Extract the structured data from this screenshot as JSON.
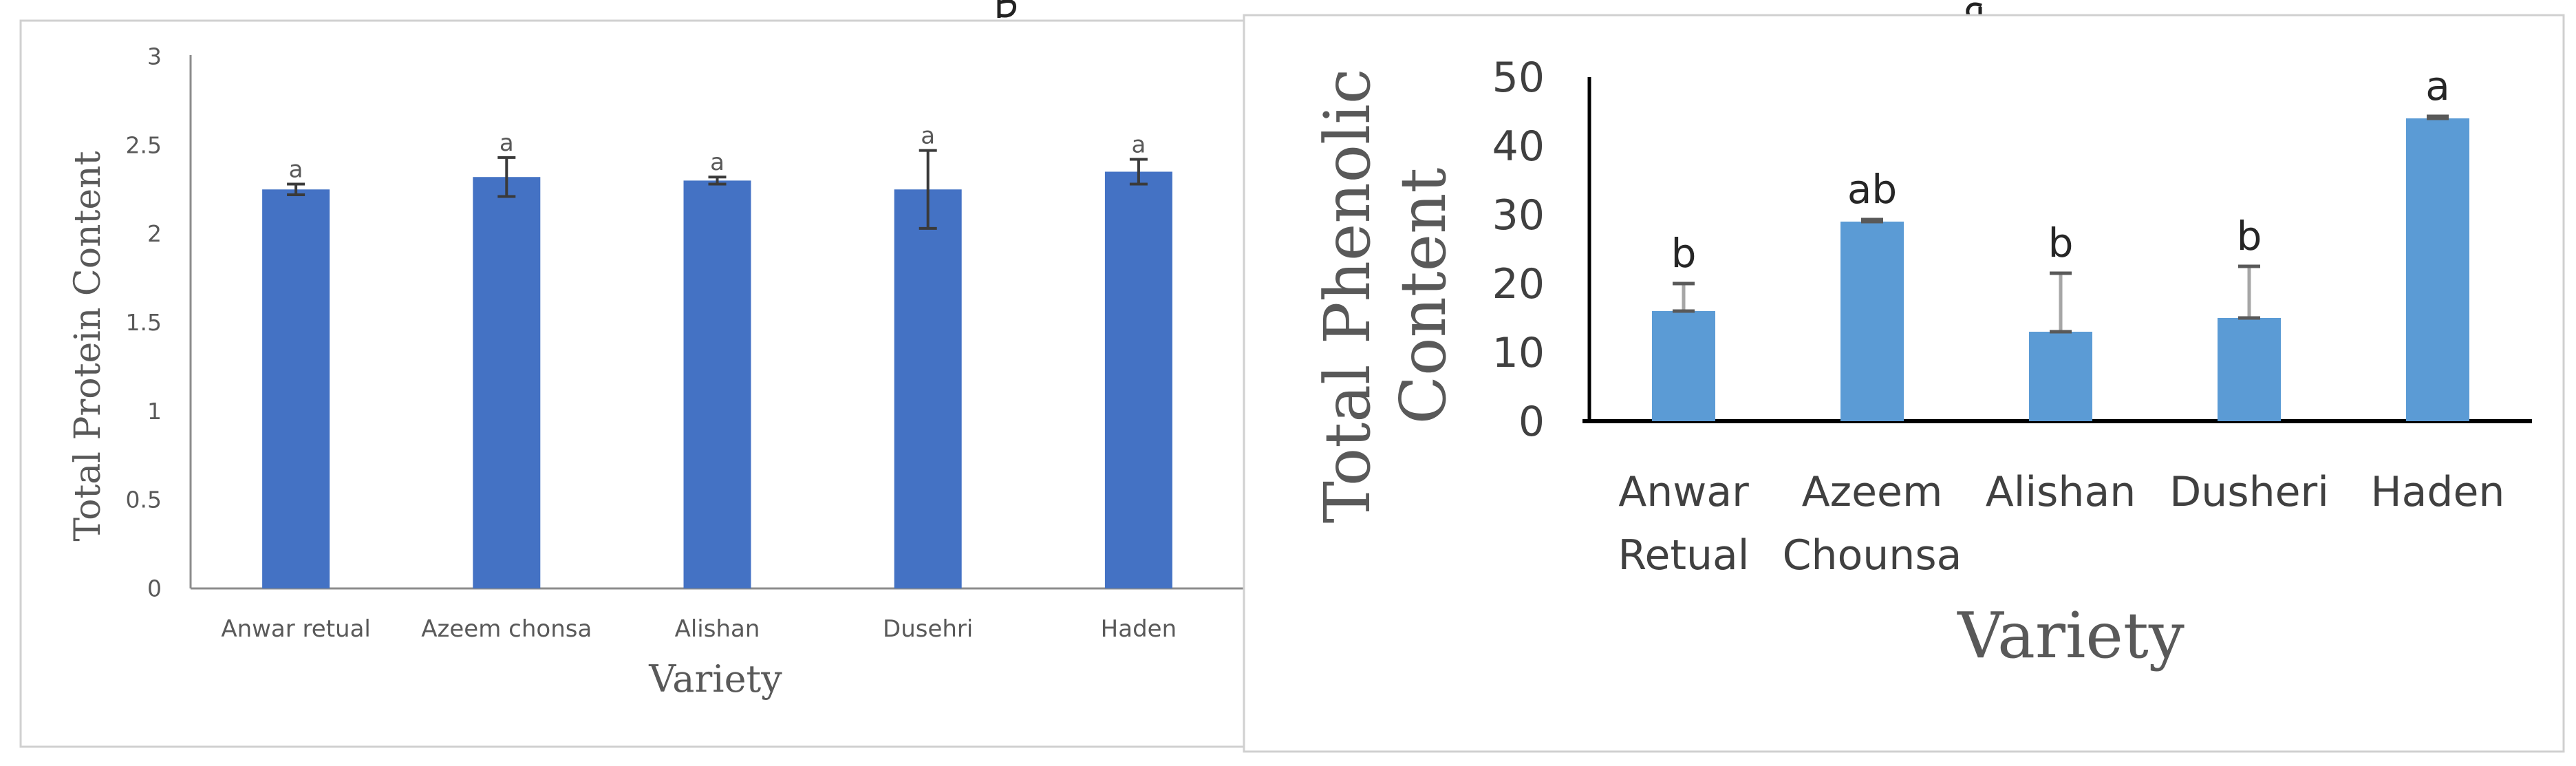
{
  "chart_data": [
    {
      "type": "bar",
      "title": "",
      "xlabel": "Variety",
      "ylabel": "Total Protein Content",
      "ylim": [
        0,
        3
      ],
      "yticks": [
        "0",
        "0.5",
        "1",
        "1.5",
        "2",
        "2.5",
        "3"
      ],
      "categories": [
        "Anwar retual",
        "Azeem chonsa",
        "Alishan",
        "Dusehri",
        "Haden"
      ],
      "values": [
        2.25,
        2.32,
        2.3,
        2.25,
        2.35
      ],
      "errors": [
        0.03,
        0.11,
        0.02,
        0.22,
        0.07
      ],
      "letters": [
        "a",
        "a",
        "a",
        "a",
        "a"
      ],
      "color": "#4472c4",
      "grid": false
    },
    {
      "type": "bar",
      "title": "",
      "xlabel": "Variety",
      "ylabel_lines": [
        "Total Phenolic",
        "Content"
      ],
      "ylim": [
        0,
        50
      ],
      "yticks": [
        "0",
        "10",
        "20",
        "30",
        "40",
        "50"
      ],
      "categories": [
        [
          "Anwar",
          "Retual"
        ],
        [
          "Azeem",
          "Chounsa"
        ],
        [
          "Alishan"
        ],
        [
          "Dusheri"
        ],
        [
          "Haden"
        ]
      ],
      "values": [
        16,
        29,
        13,
        15,
        44
      ],
      "errors": [
        4,
        0.3,
        8.5,
        7.5,
        0.3
      ],
      "letters": [
        "b",
        "ab",
        "b",
        "b",
        "a"
      ],
      "color": "#5b9bd5",
      "grid": false
    }
  ]
}
